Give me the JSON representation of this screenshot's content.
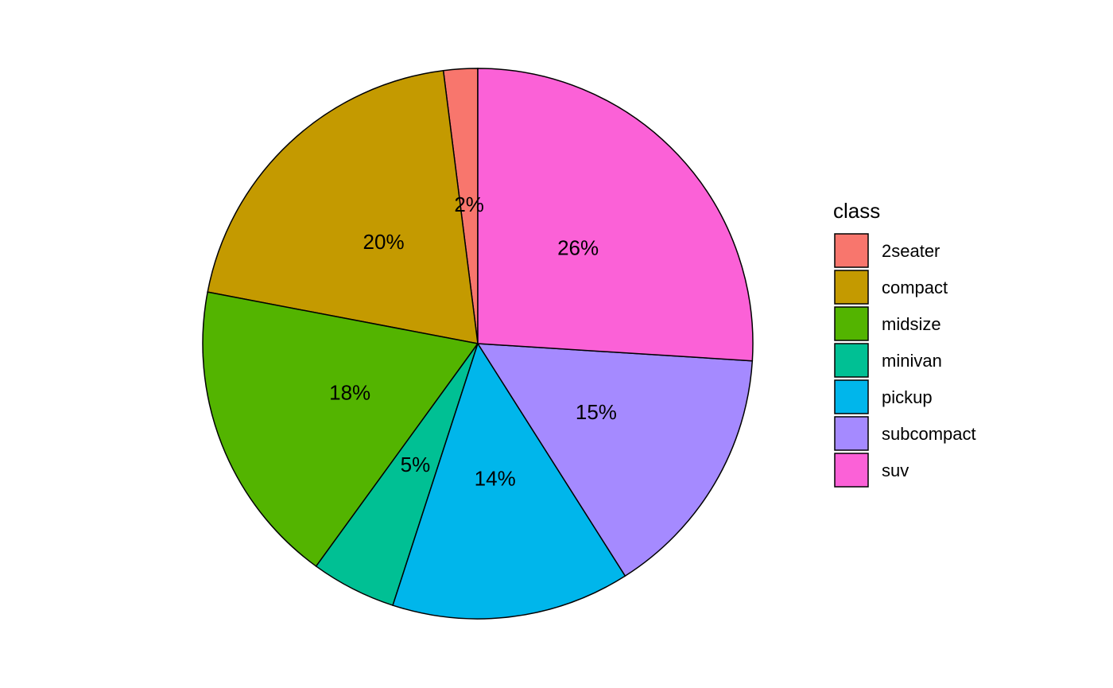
{
  "chart_data": {
    "type": "pie",
    "legend_title": "class",
    "categories": [
      "2seater",
      "compact",
      "midsize",
      "minivan",
      "pickup",
      "subcompact",
      "suv"
    ],
    "values": [
      2,
      20,
      18,
      5,
      14,
      15,
      26
    ],
    "value_labels": [
      "2%",
      "20%",
      "18%",
      "5%",
      "14%",
      "15%",
      "26%"
    ],
    "colors": [
      "#F8766D",
      "#C49A00",
      "#53B400",
      "#00C094",
      "#00B6EB",
      "#A58AFF",
      "#FB61D7"
    ],
    "legend": "right"
  }
}
